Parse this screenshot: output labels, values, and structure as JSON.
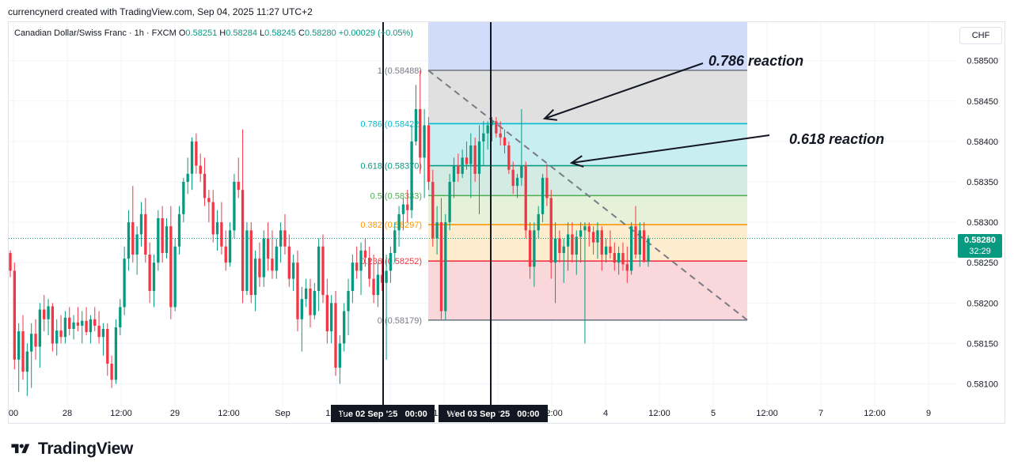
{
  "attribution": "currencynerd created with TradingView.com, Sep 04, 2025 11:27 UTC+2",
  "symbol": {
    "name": "Canadian Dollar/Swiss Franc · 1h · FXCM",
    "open_label": "O",
    "open": "0.58251",
    "high_label": "H",
    "high": "0.58284",
    "low_label": "L",
    "low": "0.58245",
    "close_label": "C",
    "close": "0.58280",
    "change": "+0.00029 (+0.05%)"
  },
  "currency": "CHF",
  "last_price": {
    "price": "0.58280",
    "countdown": "32:29",
    "color": "#089981"
  },
  "brand": "TradingView",
  "colors": {
    "up": "#089981",
    "down": "#f23645",
    "grid": "#f0f3fa",
    "axis_text": "#131722"
  },
  "chart_data": {
    "type": "candlestick",
    "title": "Canadian Dollar/Swiss Franc · 1h · FXCM",
    "ylim": [
      0.58078,
      0.58532
    ],
    "y_ticks": [
      "0.58500",
      "0.58450",
      "0.58400",
      "0.58350",
      "0.58300",
      "0.58250",
      "0.58200",
      "0.58150",
      "0.58100"
    ],
    "x_ticks": [
      "00",
      "28",
      "12:00",
      "29",
      "12:00",
      "Sep",
      "12:00",
      "2",
      "12:00",
      "3",
      "12:00",
      "4",
      "12:00",
      "5",
      "12:00",
      "7",
      "12:00",
      "9"
    ],
    "crosshair_labels": [
      "Tue 02 Sep '25   00:00",
      "Wed 03 Sep '25   00:00"
    ],
    "fib_levels": [
      {
        "ratio": "1",
        "price": "0.58488",
        "value": 0.58488,
        "label_color": "#787b86",
        "line_color": "#787b86",
        "fill": "#e0e0e0"
      },
      {
        "ratio": "0.786",
        "price": "0.58422",
        "value": 0.58422,
        "label_color": "#00bcd4",
        "line_color": "#00bcd4",
        "fill": "#c9eef2"
      },
      {
        "ratio": "0.618",
        "price": "0.58370",
        "value": 0.5837,
        "label_color": "#089981",
        "line_color": "#089981",
        "fill": "#d3ebe2"
      },
      {
        "ratio": "0.5",
        "price": "0.58333",
        "value": 0.58333,
        "label_color": "#4caf50",
        "line_color": "#4caf50",
        "fill": "#e6f1da"
      },
      {
        "ratio": "0.382",
        "price": "0.58297",
        "value": 0.58297,
        "label_color": "#ff9800",
        "line_color": "#ff9800",
        "fill": "#fdeccd"
      },
      {
        "ratio": "0.236",
        "price": "0.58252",
        "value": 0.58252,
        "label_color": "#f23645",
        "line_color": "#f23645",
        "fill": "#f9d7da"
      },
      {
        "ratio": "0",
        "price": "0.58179",
        "value": 0.58179,
        "label_color": "#787b86",
        "line_color": "#787b86",
        "fill": null
      }
    ],
    "annotations": [
      {
        "text": "0.786 reaction",
        "target_price": 0.58422
      },
      {
        "text": "0.618 reaction",
        "target_price": 0.5837
      }
    ],
    "last_price": 0.5828,
    "candles": [
      {
        "o": 0.58262,
        "h": 0.58265,
        "l": 0.58232,
        "c": 0.5824
      },
      {
        "o": 0.5824,
        "h": 0.5825,
        "l": 0.58118,
        "c": 0.5813
      },
      {
        "o": 0.5813,
        "h": 0.58175,
        "l": 0.5809,
        "c": 0.58165
      },
      {
        "o": 0.58165,
        "h": 0.58185,
        "l": 0.58105,
        "c": 0.58115
      },
      {
        "o": 0.58115,
        "h": 0.5815,
        "l": 0.58085,
        "c": 0.5814
      },
      {
        "o": 0.5814,
        "h": 0.58175,
        "l": 0.58095,
        "c": 0.58162
      },
      {
        "o": 0.58162,
        "h": 0.5818,
        "l": 0.5813,
        "c": 0.58146
      },
      {
        "o": 0.58146,
        "h": 0.582,
        "l": 0.5812,
        "c": 0.58192
      },
      {
        "o": 0.58192,
        "h": 0.5821,
        "l": 0.58165,
        "c": 0.5818
      },
      {
        "o": 0.5818,
        "h": 0.58205,
        "l": 0.5816,
        "c": 0.58196
      },
      {
        "o": 0.58196,
        "h": 0.582,
        "l": 0.5814,
        "c": 0.5815
      },
      {
        "o": 0.5815,
        "h": 0.5818,
        "l": 0.58135,
        "c": 0.58166
      },
      {
        "o": 0.58166,
        "h": 0.58185,
        "l": 0.5815,
        "c": 0.58158
      },
      {
        "o": 0.58158,
        "h": 0.5819,
        "l": 0.5815,
        "c": 0.58182
      },
      {
        "o": 0.58182,
        "h": 0.58195,
        "l": 0.5816,
        "c": 0.58168
      },
      {
        "o": 0.58168,
        "h": 0.58185,
        "l": 0.58155,
        "c": 0.58176
      },
      {
        "o": 0.58176,
        "h": 0.58195,
        "l": 0.58165,
        "c": 0.58172
      },
      {
        "o": 0.58172,
        "h": 0.5819,
        "l": 0.5815,
        "c": 0.58178
      },
      {
        "o": 0.58178,
        "h": 0.58195,
        "l": 0.5816,
        "c": 0.58164
      },
      {
        "o": 0.58164,
        "h": 0.58185,
        "l": 0.5815,
        "c": 0.5818
      },
      {
        "o": 0.5818,
        "h": 0.58195,
        "l": 0.58165,
        "c": 0.58172
      },
      {
        "o": 0.58172,
        "h": 0.5819,
        "l": 0.5815,
        "c": 0.58158
      },
      {
        "o": 0.58158,
        "h": 0.58175,
        "l": 0.58135,
        "c": 0.58168
      },
      {
        "o": 0.58168,
        "h": 0.58175,
        "l": 0.5811,
        "c": 0.58125
      },
      {
        "o": 0.58125,
        "h": 0.58135,
        "l": 0.58095,
        "c": 0.58105
      },
      {
        "o": 0.58105,
        "h": 0.5818,
        "l": 0.581,
        "c": 0.5817
      },
      {
        "o": 0.5817,
        "h": 0.58205,
        "l": 0.5816,
        "c": 0.58195
      },
      {
        "o": 0.58195,
        "h": 0.5827,
        "l": 0.58185,
        "c": 0.58255
      },
      {
        "o": 0.58255,
        "h": 0.58315,
        "l": 0.5824,
        "c": 0.583
      },
      {
        "o": 0.583,
        "h": 0.58345,
        "l": 0.5825,
        "c": 0.5826
      },
      {
        "o": 0.5826,
        "h": 0.58295,
        "l": 0.58235,
        "c": 0.58285
      },
      {
        "o": 0.58285,
        "h": 0.58325,
        "l": 0.5827,
        "c": 0.5831
      },
      {
        "o": 0.5831,
        "h": 0.5833,
        "l": 0.5825,
        "c": 0.5826
      },
      {
        "o": 0.5826,
        "h": 0.58275,
        "l": 0.582,
        "c": 0.58215
      },
      {
        "o": 0.58215,
        "h": 0.5826,
        "l": 0.58195,
        "c": 0.5825
      },
      {
        "o": 0.5825,
        "h": 0.58315,
        "l": 0.5824,
        "c": 0.58305
      },
      {
        "o": 0.58305,
        "h": 0.5832,
        "l": 0.5825,
        "c": 0.58262
      },
      {
        "o": 0.58262,
        "h": 0.58305,
        "l": 0.58255,
        "c": 0.58295
      },
      {
        "o": 0.58295,
        "h": 0.5832,
        "l": 0.5818,
        "c": 0.58195
      },
      {
        "o": 0.58195,
        "h": 0.5828,
        "l": 0.5819,
        "c": 0.5827
      },
      {
        "o": 0.5827,
        "h": 0.5832,
        "l": 0.5826,
        "c": 0.5831
      },
      {
        "o": 0.5831,
        "h": 0.58355,
        "l": 0.583,
        "c": 0.5835
      },
      {
        "o": 0.5835,
        "h": 0.5838,
        "l": 0.58335,
        "c": 0.5836
      },
      {
        "o": 0.5836,
        "h": 0.58405,
        "l": 0.5834,
        "c": 0.584
      },
      {
        "o": 0.584,
        "h": 0.5841,
        "l": 0.5836,
        "c": 0.5837
      },
      {
        "o": 0.5837,
        "h": 0.58385,
        "l": 0.5835,
        "c": 0.5836
      },
      {
        "o": 0.5836,
        "h": 0.5838,
        "l": 0.5832,
        "c": 0.5833
      },
      {
        "o": 0.5833,
        "h": 0.5834,
        "l": 0.583,
        "c": 0.58325
      },
      {
        "o": 0.58325,
        "h": 0.5834,
        "l": 0.58275,
        "c": 0.58285
      },
      {
        "o": 0.58285,
        "h": 0.58315,
        "l": 0.58265,
        "c": 0.583
      },
      {
        "o": 0.583,
        "h": 0.58325,
        "l": 0.5826,
        "c": 0.5827
      },
      {
        "o": 0.5827,
        "h": 0.5829,
        "l": 0.5824,
        "c": 0.5825
      },
      {
        "o": 0.5825,
        "h": 0.583,
        "l": 0.58245,
        "c": 0.5829
      },
      {
        "o": 0.5829,
        "h": 0.5836,
        "l": 0.5828,
        "c": 0.5835
      },
      {
        "o": 0.5835,
        "h": 0.5838,
        "l": 0.5833,
        "c": 0.5834
      },
      {
        "o": 0.5834,
        "h": 0.58415,
        "l": 0.582,
        "c": 0.58215
      },
      {
        "o": 0.58215,
        "h": 0.583,
        "l": 0.5821,
        "c": 0.5829
      },
      {
        "o": 0.5829,
        "h": 0.583,
        "l": 0.582,
        "c": 0.5821
      },
      {
        "o": 0.5821,
        "h": 0.58265,
        "l": 0.5819,
        "c": 0.58255
      },
      {
        "o": 0.58255,
        "h": 0.58275,
        "l": 0.5822,
        "c": 0.58232
      },
      {
        "o": 0.58232,
        "h": 0.5829,
        "l": 0.5822,
        "c": 0.5828
      },
      {
        "o": 0.5828,
        "h": 0.583,
        "l": 0.5824,
        "c": 0.58255
      },
      {
        "o": 0.58255,
        "h": 0.5829,
        "l": 0.5823,
        "c": 0.5824
      },
      {
        "o": 0.5824,
        "h": 0.5828,
        "l": 0.5823,
        "c": 0.5827
      },
      {
        "o": 0.5827,
        "h": 0.583,
        "l": 0.5825,
        "c": 0.5829
      },
      {
        "o": 0.5829,
        "h": 0.5831,
        "l": 0.5826,
        "c": 0.5827
      },
      {
        "o": 0.5827,
        "h": 0.58285,
        "l": 0.5822,
        "c": 0.5823
      },
      {
        "o": 0.5823,
        "h": 0.5826,
        "l": 0.58215,
        "c": 0.5825
      },
      {
        "o": 0.5825,
        "h": 0.58265,
        "l": 0.58165,
        "c": 0.5818
      },
      {
        "o": 0.5818,
        "h": 0.5822,
        "l": 0.5814,
        "c": 0.58205
      },
      {
        "o": 0.58205,
        "h": 0.5823,
        "l": 0.58195,
        "c": 0.58218
      },
      {
        "o": 0.58218,
        "h": 0.5823,
        "l": 0.5817,
        "c": 0.58185
      },
      {
        "o": 0.58185,
        "h": 0.58225,
        "l": 0.5818,
        "c": 0.58215
      },
      {
        "o": 0.58215,
        "h": 0.5828,
        "l": 0.5819,
        "c": 0.5827
      },
      {
        "o": 0.5827,
        "h": 0.58285,
        "l": 0.582,
        "c": 0.5821
      },
      {
        "o": 0.5821,
        "h": 0.5823,
        "l": 0.5815,
        "c": 0.58165
      },
      {
        "o": 0.58165,
        "h": 0.5821,
        "l": 0.5815,
        "c": 0.582
      },
      {
        "o": 0.582,
        "h": 0.58215,
        "l": 0.5811,
        "c": 0.5812
      },
      {
        "o": 0.5812,
        "h": 0.5816,
        "l": 0.581,
        "c": 0.5815
      },
      {
        "o": 0.5815,
        "h": 0.582,
        "l": 0.5814,
        "c": 0.5819
      },
      {
        "o": 0.5819,
        "h": 0.5823,
        "l": 0.5816,
        "c": 0.58215
      },
      {
        "o": 0.58215,
        "h": 0.5826,
        "l": 0.582,
        "c": 0.5825
      },
      {
        "o": 0.5825,
        "h": 0.5827,
        "l": 0.5823,
        "c": 0.5824
      },
      {
        "o": 0.5824,
        "h": 0.58275,
        "l": 0.5821,
        "c": 0.58265
      },
      {
        "o": 0.58265,
        "h": 0.5828,
        "l": 0.58245,
        "c": 0.58256
      },
      {
        "o": 0.58256,
        "h": 0.5827,
        "l": 0.5822,
        "c": 0.5823
      },
      {
        "o": 0.5823,
        "h": 0.5826,
        "l": 0.582,
        "c": 0.5821
      },
      {
        "o": 0.5821,
        "h": 0.5825,
        "l": 0.58195,
        "c": 0.58235
      },
      {
        "o": 0.58235,
        "h": 0.58255,
        "l": 0.58215,
        "c": 0.58225
      },
      {
        "o": 0.58225,
        "h": 0.5826,
        "l": 0.5813,
        "c": 0.5824
      },
      {
        "o": 0.5824,
        "h": 0.5827,
        "l": 0.58225,
        "c": 0.58262
      },
      {
        "o": 0.58262,
        "h": 0.583,
        "l": 0.5825,
        "c": 0.5829
      },
      {
        "o": 0.5829,
        "h": 0.5832,
        "l": 0.5827,
        "c": 0.5831
      },
      {
        "o": 0.5831,
        "h": 0.5833,
        "l": 0.5829,
        "c": 0.58322
      },
      {
        "o": 0.58322,
        "h": 0.5834,
        "l": 0.583,
        "c": 0.58315
      },
      {
        "o": 0.58315,
        "h": 0.5842,
        "l": 0.58305,
        "c": 0.584
      },
      {
        "o": 0.584,
        "h": 0.5847,
        "l": 0.58395,
        "c": 0.5844
      },
      {
        "o": 0.5844,
        "h": 0.58488,
        "l": 0.5836,
        "c": 0.5838
      },
      {
        "o": 0.5838,
        "h": 0.5844,
        "l": 0.5833,
        "c": 0.5842
      },
      {
        "o": 0.5842,
        "h": 0.5843,
        "l": 0.5834,
        "c": 0.5835
      },
      {
        "o": 0.5835,
        "h": 0.58365,
        "l": 0.5827,
        "c": 0.5828
      },
      {
        "o": 0.5828,
        "h": 0.5832,
        "l": 0.5826,
        "c": 0.583
      },
      {
        "o": 0.583,
        "h": 0.5833,
        "l": 0.5818,
        "c": 0.5819
      },
      {
        "o": 0.5819,
        "h": 0.5831,
        "l": 0.58179,
        "c": 0.583
      },
      {
        "o": 0.583,
        "h": 0.5836,
        "l": 0.5829,
        "c": 0.5835
      },
      {
        "o": 0.5835,
        "h": 0.5838,
        "l": 0.5833,
        "c": 0.5837
      },
      {
        "o": 0.5837,
        "h": 0.58385,
        "l": 0.5835,
        "c": 0.5836
      },
      {
        "o": 0.5836,
        "h": 0.5839,
        "l": 0.58355,
        "c": 0.5838
      },
      {
        "o": 0.5838,
        "h": 0.584,
        "l": 0.58365,
        "c": 0.58372
      },
      {
        "o": 0.58372,
        "h": 0.5841,
        "l": 0.5833,
        "c": 0.58395
      },
      {
        "o": 0.58395,
        "h": 0.58405,
        "l": 0.5835,
        "c": 0.5836
      },
      {
        "o": 0.5836,
        "h": 0.5842,
        "l": 0.5831,
        "c": 0.584
      },
      {
        "o": 0.584,
        "h": 0.58425,
        "l": 0.5837,
        "c": 0.5841
      },
      {
        "o": 0.5841,
        "h": 0.58425,
        "l": 0.5839,
        "c": 0.5842
      },
      {
        "o": 0.5842,
        "h": 0.5843,
        "l": 0.584,
        "c": 0.58425
      },
      {
        "o": 0.58425,
        "h": 0.5843,
        "l": 0.58405,
        "c": 0.5841
      },
      {
        "o": 0.5841,
        "h": 0.58425,
        "l": 0.58395,
        "c": 0.58405
      },
      {
        "o": 0.58405,
        "h": 0.58415,
        "l": 0.58385,
        "c": 0.58395
      },
      {
        "o": 0.58395,
        "h": 0.584,
        "l": 0.5836,
        "c": 0.58365
      },
      {
        "o": 0.58365,
        "h": 0.58375,
        "l": 0.58335,
        "c": 0.58345
      },
      {
        "o": 0.58345,
        "h": 0.5836,
        "l": 0.5833,
        "c": 0.58355
      },
      {
        "o": 0.58355,
        "h": 0.5844,
        "l": 0.58345,
        "c": 0.5837
      },
      {
        "o": 0.5837,
        "h": 0.58375,
        "l": 0.5828,
        "c": 0.5829
      },
      {
        "o": 0.5829,
        "h": 0.583,
        "l": 0.5823,
        "c": 0.58245
      },
      {
        "o": 0.58245,
        "h": 0.583,
        "l": 0.5822,
        "c": 0.5829
      },
      {
        "o": 0.5829,
        "h": 0.5832,
        "l": 0.5828,
        "c": 0.5831
      },
      {
        "o": 0.5831,
        "h": 0.5836,
        "l": 0.583,
        "c": 0.58355
      },
      {
        "o": 0.58355,
        "h": 0.58372,
        "l": 0.5832,
        "c": 0.5833
      },
      {
        "o": 0.5833,
        "h": 0.5834,
        "l": 0.5823,
        "c": 0.5825
      },
      {
        "o": 0.5825,
        "h": 0.583,
        "l": 0.582,
        "c": 0.5828
      },
      {
        "o": 0.5828,
        "h": 0.5829,
        "l": 0.5825,
        "c": 0.58262
      },
      {
        "o": 0.58262,
        "h": 0.5828,
        "l": 0.58225,
        "c": 0.5827
      },
      {
        "o": 0.5827,
        "h": 0.583,
        "l": 0.5824,
        "c": 0.58285
      },
      {
        "o": 0.58285,
        "h": 0.583,
        "l": 0.5825,
        "c": 0.5826
      },
      {
        "o": 0.5826,
        "h": 0.5829,
        "l": 0.58235,
        "c": 0.58282
      },
      {
        "o": 0.58282,
        "h": 0.583,
        "l": 0.5825,
        "c": 0.5829
      },
      {
        "o": 0.5829,
        "h": 0.583,
        "l": 0.5815,
        "c": 0.58295
      },
      {
        "o": 0.58295,
        "h": 0.583,
        "l": 0.5827,
        "c": 0.58288
      },
      {
        "o": 0.58288,
        "h": 0.58295,
        "l": 0.5826,
        "c": 0.58275
      },
      {
        "o": 0.58275,
        "h": 0.583,
        "l": 0.58255,
        "c": 0.5829
      },
      {
        "o": 0.5829,
        "h": 0.58295,
        "l": 0.5824,
        "c": 0.5826
      },
      {
        "o": 0.5826,
        "h": 0.5828,
        "l": 0.5825,
        "c": 0.5827
      },
      {
        "o": 0.5827,
        "h": 0.5829,
        "l": 0.58255,
        "c": 0.58262
      },
      {
        "o": 0.58262,
        "h": 0.58275,
        "l": 0.5824,
        "c": 0.5825
      },
      {
        "o": 0.5825,
        "h": 0.5827,
        "l": 0.58235,
        "c": 0.58262
      },
      {
        "o": 0.58262,
        "h": 0.58275,
        "l": 0.5824,
        "c": 0.58248
      },
      {
        "o": 0.58248,
        "h": 0.5827,
        "l": 0.58225,
        "c": 0.5824
      },
      {
        "o": 0.5824,
        "h": 0.583,
        "l": 0.58235,
        "c": 0.58295
      },
      {
        "o": 0.58295,
        "h": 0.5832,
        "l": 0.58255,
        "c": 0.5826
      },
      {
        "o": 0.5826,
        "h": 0.583,
        "l": 0.58245,
        "c": 0.5829
      },
      {
        "o": 0.5829,
        "h": 0.583,
        "l": 0.5825,
        "c": 0.58251
      },
      {
        "o": 0.58251,
        "h": 0.58284,
        "l": 0.58245,
        "c": 0.5828
      }
    ]
  }
}
